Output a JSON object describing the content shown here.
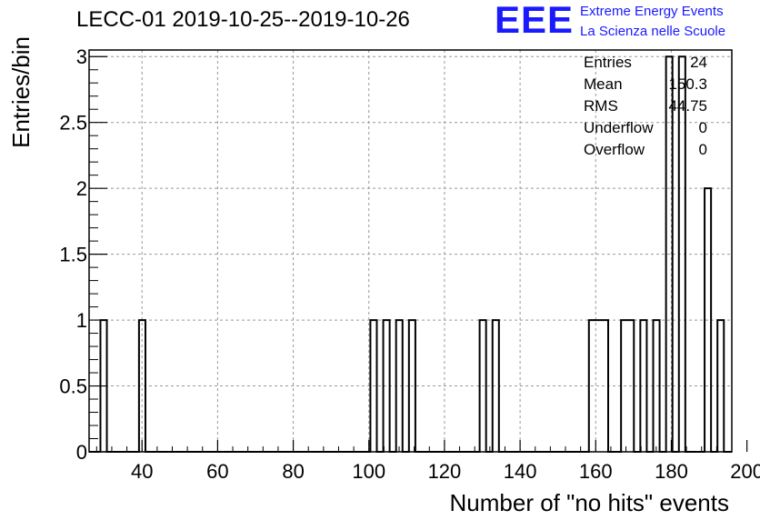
{
  "title": "LECC-01 2019-10-25--2019-10-26",
  "logo": {
    "mark": "EEE",
    "line1": "Extreme Energy Events",
    "line2": "La Scienza nelle Scuole",
    "color": "#1a1aff"
  },
  "stats": [
    {
      "label": "Entries",
      "value": "24"
    },
    {
      "label": "Mean",
      "value": "150.3"
    },
    {
      "label": "RMS",
      "value": "44.75"
    },
    {
      "label": "Underflow",
      "value": "0"
    },
    {
      "label": "Overflow",
      "value": "0"
    }
  ],
  "chart_data": {
    "type": "bar",
    "style": "step-histogram",
    "xlabel": "Number of \"no hits\" events",
    "ylabel": "Entries/bin",
    "xlim": [
      26,
      196
    ],
    "ylim": [
      0,
      3.05
    ],
    "xticks": [
      40,
      60,
      80,
      100,
      120,
      140,
      160,
      180,
      200
    ],
    "xtick_labels": [
      "40",
      "60",
      "80",
      "100",
      "120",
      "140",
      "160",
      "180",
      "200"
    ],
    "yticks": [
      0,
      0.5,
      1,
      1.5,
      2,
      2.5,
      3
    ],
    "ytick_labels": [
      "0",
      "0.5",
      "1",
      "1.5",
      "2",
      "2.5",
      "3"
    ],
    "grid": true,
    "bin_width": 1.7,
    "bins": [
      {
        "x": 29.0,
        "value": 1
      },
      {
        "x": 39.2,
        "value": 1
      },
      {
        "x": 100.4,
        "value": 1
      },
      {
        "x": 103.8,
        "value": 1
      },
      {
        "x": 107.2,
        "value": 1
      },
      {
        "x": 110.6,
        "value": 1
      },
      {
        "x": 129.3,
        "value": 1
      },
      {
        "x": 132.7,
        "value": 1
      },
      {
        "x": 158.2,
        "value": 1
      },
      {
        "x": 159.9,
        "value": 1
      },
      {
        "x": 161.6,
        "value": 1
      },
      {
        "x": 166.7,
        "value": 1
      },
      {
        "x": 168.4,
        "value": 1
      },
      {
        "x": 171.8,
        "value": 1
      },
      {
        "x": 175.2,
        "value": 1
      },
      {
        "x": 178.6,
        "value": 3
      },
      {
        "x": 182.0,
        "value": 3
      },
      {
        "x": 188.8,
        "value": 2
      },
      {
        "x": 192.2,
        "value": 1
      }
    ]
  }
}
